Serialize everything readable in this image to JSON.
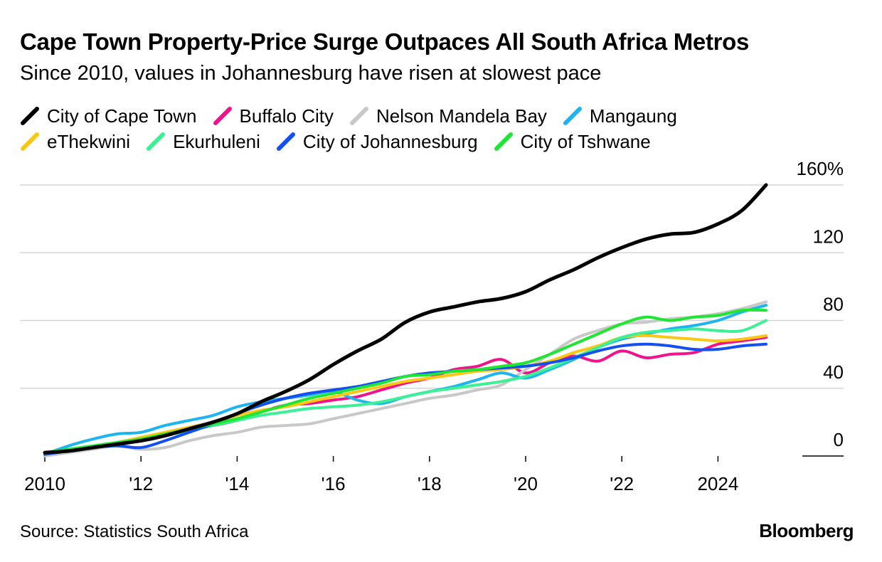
{
  "header": {
    "title": "Cape Town Property-Price Surge Outpaces All South Africa Metros",
    "subtitle": "Since 2010, values in Johannesburg have risen at slowest pace"
  },
  "footer": {
    "source": "Source: Statistics South Africa",
    "logo": "Bloomberg"
  },
  "chart_data": {
    "type": "line",
    "title": "Cape Town Property-Price Surge Outpaces All South Africa Metros",
    "subtitle": "Since 2010, values in Johannesburg have risen at slowest pace",
    "xlabel": "",
    "ylabel": "",
    "x_ticks": [
      {
        "value": 2010,
        "label": "2010"
      },
      {
        "value": 2012,
        "label": "'12"
      },
      {
        "value": 2014,
        "label": "'14"
      },
      {
        "value": 2016,
        "label": "'16"
      },
      {
        "value": 2018,
        "label": "'18"
      },
      {
        "value": 2020,
        "label": "'20"
      },
      {
        "value": 2022,
        "label": "'22"
      },
      {
        "value": 2024,
        "label": "2024"
      }
    ],
    "y_ticks": [
      {
        "value": 160,
        "label": "160%"
      },
      {
        "value": 120,
        "label": "120"
      },
      {
        "value": 80,
        "label": "80"
      },
      {
        "value": 40,
        "label": "40"
      },
      {
        "value": 0,
        "label": "0"
      }
    ],
    "xlim": [
      2010,
      2025
    ],
    "ylim": [
      0,
      160
    ],
    "grid": true,
    "legend_position": "top",
    "series": [
      {
        "name": "City of Cape Town",
        "color": "#000000",
        "points": [
          [
            2010,
            2
          ],
          [
            2010.5,
            3
          ],
          [
            2011,
            5
          ],
          [
            2011.5,
            7
          ],
          [
            2012,
            9
          ],
          [
            2012.5,
            12
          ],
          [
            2013,
            16
          ],
          [
            2013.5,
            20
          ],
          [
            2014,
            25
          ],
          [
            2014.5,
            32
          ],
          [
            2015,
            38
          ],
          [
            2015.5,
            45
          ],
          [
            2016,
            54
          ],
          [
            2016.5,
            62
          ],
          [
            2017,
            69
          ],
          [
            2017.5,
            79
          ],
          [
            2018,
            85
          ],
          [
            2018.5,
            88
          ],
          [
            2019,
            91
          ],
          [
            2019.5,
            93
          ],
          [
            2020,
            97
          ],
          [
            2020.5,
            104
          ],
          [
            2021,
            110
          ],
          [
            2021.5,
            117
          ],
          [
            2022,
            123
          ],
          [
            2022.5,
            128
          ],
          [
            2023,
            131
          ],
          [
            2023.5,
            132
          ],
          [
            2024,
            137
          ],
          [
            2024.5,
            145
          ],
          [
            2025,
            160
          ]
        ]
      },
      {
        "name": "Buffalo City",
        "color": "#f0148c",
        "points": [
          [
            2010,
            0
          ],
          [
            2010.5,
            3
          ],
          [
            2011,
            5
          ],
          [
            2011.5,
            7
          ],
          [
            2012,
            10
          ],
          [
            2012.5,
            13
          ],
          [
            2013,
            16
          ],
          [
            2013.5,
            18
          ],
          [
            2014,
            21
          ],
          [
            2014.5,
            26
          ],
          [
            2015,
            30
          ],
          [
            2015.5,
            31
          ],
          [
            2016,
            33
          ],
          [
            2016.5,
            35
          ],
          [
            2017,
            39
          ],
          [
            2017.5,
            43
          ],
          [
            2018,
            46
          ],
          [
            2018.5,
            51
          ],
          [
            2019,
            53
          ],
          [
            2019.5,
            57
          ],
          [
            2020,
            49
          ],
          [
            2020.5,
            55
          ],
          [
            2021,
            59
          ],
          [
            2021.5,
            56
          ],
          [
            2022,
            62
          ],
          [
            2022.5,
            58
          ],
          [
            2023,
            60
          ],
          [
            2023.5,
            61
          ],
          [
            2024,
            66
          ],
          [
            2024.5,
            68
          ],
          [
            2025,
            70
          ]
        ]
      },
      {
        "name": "Nelson Mandela Bay",
        "color": "#c8c8c8",
        "points": [
          [
            2010,
            0
          ],
          [
            2010.5,
            2
          ],
          [
            2011,
            4
          ],
          [
            2011.5,
            6
          ],
          [
            2012,
            4
          ],
          [
            2012.5,
            5
          ],
          [
            2013,
            9
          ],
          [
            2013.5,
            12
          ],
          [
            2014,
            14
          ],
          [
            2014.5,
            17
          ],
          [
            2015,
            18
          ],
          [
            2015.5,
            19
          ],
          [
            2016,
            22
          ],
          [
            2016.5,
            25
          ],
          [
            2017,
            28
          ],
          [
            2017.5,
            31
          ],
          [
            2018,
            34
          ],
          [
            2018.5,
            36
          ],
          [
            2019,
            39
          ],
          [
            2019.5,
            42
          ],
          [
            2020,
            51
          ],
          [
            2020.5,
            60
          ],
          [
            2021,
            69
          ],
          [
            2021.5,
            74
          ],
          [
            2022,
            78
          ],
          [
            2022.5,
            79
          ],
          [
            2023,
            81
          ],
          [
            2023.5,
            82
          ],
          [
            2024,
            84
          ],
          [
            2024.5,
            87
          ],
          [
            2025,
            91
          ]
        ]
      },
      {
        "name": "Mangaung",
        "color": "#1eb4f0",
        "points": [
          [
            2010,
            1
          ],
          [
            2010.5,
            6
          ],
          [
            2011,
            10
          ],
          [
            2011.5,
            13
          ],
          [
            2012,
            14
          ],
          [
            2012.5,
            18
          ],
          [
            2013,
            21
          ],
          [
            2013.5,
            24
          ],
          [
            2014,
            29
          ],
          [
            2014.5,
            32
          ],
          [
            2015,
            34
          ],
          [
            2015.5,
            36
          ],
          [
            2016,
            38
          ],
          [
            2016.5,
            33
          ],
          [
            2017,
            31
          ],
          [
            2017.5,
            35
          ],
          [
            2018,
            38
          ],
          [
            2018.5,
            41
          ],
          [
            2019,
            45
          ],
          [
            2019.5,
            49
          ],
          [
            2020,
            46
          ],
          [
            2020.5,
            51
          ],
          [
            2021,
            57
          ],
          [
            2021.5,
            64
          ],
          [
            2022,
            69
          ],
          [
            2022.5,
            72
          ],
          [
            2023,
            75
          ],
          [
            2023.5,
            77
          ],
          [
            2024,
            80
          ],
          [
            2024.5,
            85
          ],
          [
            2025,
            89
          ]
        ]
      },
      {
        "name": "eThekwini",
        "color": "#fac814",
        "points": [
          [
            2010,
            2
          ],
          [
            2010.5,
            3
          ],
          [
            2011,
            5
          ],
          [
            2011.5,
            8
          ],
          [
            2012,
            11
          ],
          [
            2012.5,
            14
          ],
          [
            2013,
            17
          ],
          [
            2013.5,
            20
          ],
          [
            2014,
            24
          ],
          [
            2014.5,
            27
          ],
          [
            2015,
            29
          ],
          [
            2015.5,
            32
          ],
          [
            2016,
            35
          ],
          [
            2016.5,
            38
          ],
          [
            2017,
            41
          ],
          [
            2017.5,
            44
          ],
          [
            2018,
            46
          ],
          [
            2018.5,
            48
          ],
          [
            2019,
            50
          ],
          [
            2019.5,
            51
          ],
          [
            2020,
            53
          ],
          [
            2020.5,
            56
          ],
          [
            2021,
            61
          ],
          [
            2021.5,
            65
          ],
          [
            2022,
            70
          ],
          [
            2022.5,
            71
          ],
          [
            2023,
            70
          ],
          [
            2023.5,
            69
          ],
          [
            2024,
            68
          ],
          [
            2024.5,
            69
          ],
          [
            2025,
            71
          ]
        ]
      },
      {
        "name": "Ekurhuleni",
        "color": "#3cf096",
        "points": [
          [
            2010,
            1
          ],
          [
            2010.5,
            3
          ],
          [
            2011,
            5
          ],
          [
            2011.5,
            7
          ],
          [
            2012,
            9
          ],
          [
            2012.5,
            12
          ],
          [
            2013,
            15
          ],
          [
            2013.5,
            18
          ],
          [
            2014,
            21
          ],
          [
            2014.5,
            24
          ],
          [
            2015,
            26
          ],
          [
            2015.5,
            28
          ],
          [
            2016,
            29
          ],
          [
            2016.5,
            30
          ],
          [
            2017,
            32
          ],
          [
            2017.5,
            35
          ],
          [
            2018,
            38
          ],
          [
            2018.5,
            40
          ],
          [
            2019,
            42
          ],
          [
            2019.5,
            44
          ],
          [
            2020,
            47
          ],
          [
            2020.5,
            52
          ],
          [
            2021,
            58
          ],
          [
            2021.5,
            64
          ],
          [
            2022,
            70
          ],
          [
            2022.5,
            73
          ],
          [
            2023,
            74
          ],
          [
            2023.5,
            75
          ],
          [
            2024,
            74
          ],
          [
            2024.5,
            74
          ],
          [
            2025,
            80
          ]
        ]
      },
      {
        "name": "City of Johannesburg",
        "color": "#1450f0",
        "points": [
          [
            2010,
            1
          ],
          [
            2010.5,
            3
          ],
          [
            2011,
            5
          ],
          [
            2011.5,
            6
          ],
          [
            2012,
            5
          ],
          [
            2012.5,
            9
          ],
          [
            2013,
            14
          ],
          [
            2013.5,
            19
          ],
          [
            2014,
            25
          ],
          [
            2014.5,
            30
          ],
          [
            2015,
            34
          ],
          [
            2015.5,
            37
          ],
          [
            2016,
            39
          ],
          [
            2016.5,
            41
          ],
          [
            2017,
            44
          ],
          [
            2017.5,
            47
          ],
          [
            2018,
            49
          ],
          [
            2018.5,
            50
          ],
          [
            2019,
            51
          ],
          [
            2019.5,
            52
          ],
          [
            2020,
            53
          ],
          [
            2020.5,
            55
          ],
          [
            2021,
            58
          ],
          [
            2021.5,
            62
          ],
          [
            2022,
            65
          ],
          [
            2022.5,
            66
          ],
          [
            2023,
            65
          ],
          [
            2023.5,
            63
          ],
          [
            2024,
            63
          ],
          [
            2024.5,
            65
          ],
          [
            2025,
            66
          ]
        ]
      },
      {
        "name": "City of Tshwane",
        "color": "#1ee632",
        "points": [
          [
            2010,
            2
          ],
          [
            2010.5,
            4
          ],
          [
            2011,
            6
          ],
          [
            2011.5,
            8
          ],
          [
            2012,
            10
          ],
          [
            2012.5,
            13
          ],
          [
            2013,
            16
          ],
          [
            2013.5,
            19
          ],
          [
            2014,
            22
          ],
          [
            2014.5,
            26
          ],
          [
            2015,
            30
          ],
          [
            2015.5,
            34
          ],
          [
            2016,
            37
          ],
          [
            2016.5,
            40
          ],
          [
            2017,
            43
          ],
          [
            2017.5,
            47
          ],
          [
            2018,
            48
          ],
          [
            2018.5,
            50
          ],
          [
            2019,
            51
          ],
          [
            2019.5,
            53
          ],
          [
            2020,
            55
          ],
          [
            2020.5,
            60
          ],
          [
            2021,
            66
          ],
          [
            2021.5,
            72
          ],
          [
            2022,
            78
          ],
          [
            2022.5,
            82
          ],
          [
            2023,
            80
          ],
          [
            2023.5,
            82
          ],
          [
            2024,
            83
          ],
          [
            2024.5,
            86
          ],
          [
            2025,
            86
          ]
        ]
      }
    ]
  }
}
